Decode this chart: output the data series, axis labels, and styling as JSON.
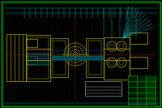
{
  "bg_color": "#000000",
  "border_outer": "#00bb00",
  "border_inner": "#005500",
  "dot_color": "#004400",
  "yellow": "#bbaa00",
  "cyan": "#00bbbb",
  "green": "#00aa00",
  "red": "#cc2200",
  "blue": "#0044cc",
  "magenta": "#cc00cc",
  "white": "#bbbbbb",
  "figsize": [
    2.0,
    1.33
  ],
  "dpi": 100
}
